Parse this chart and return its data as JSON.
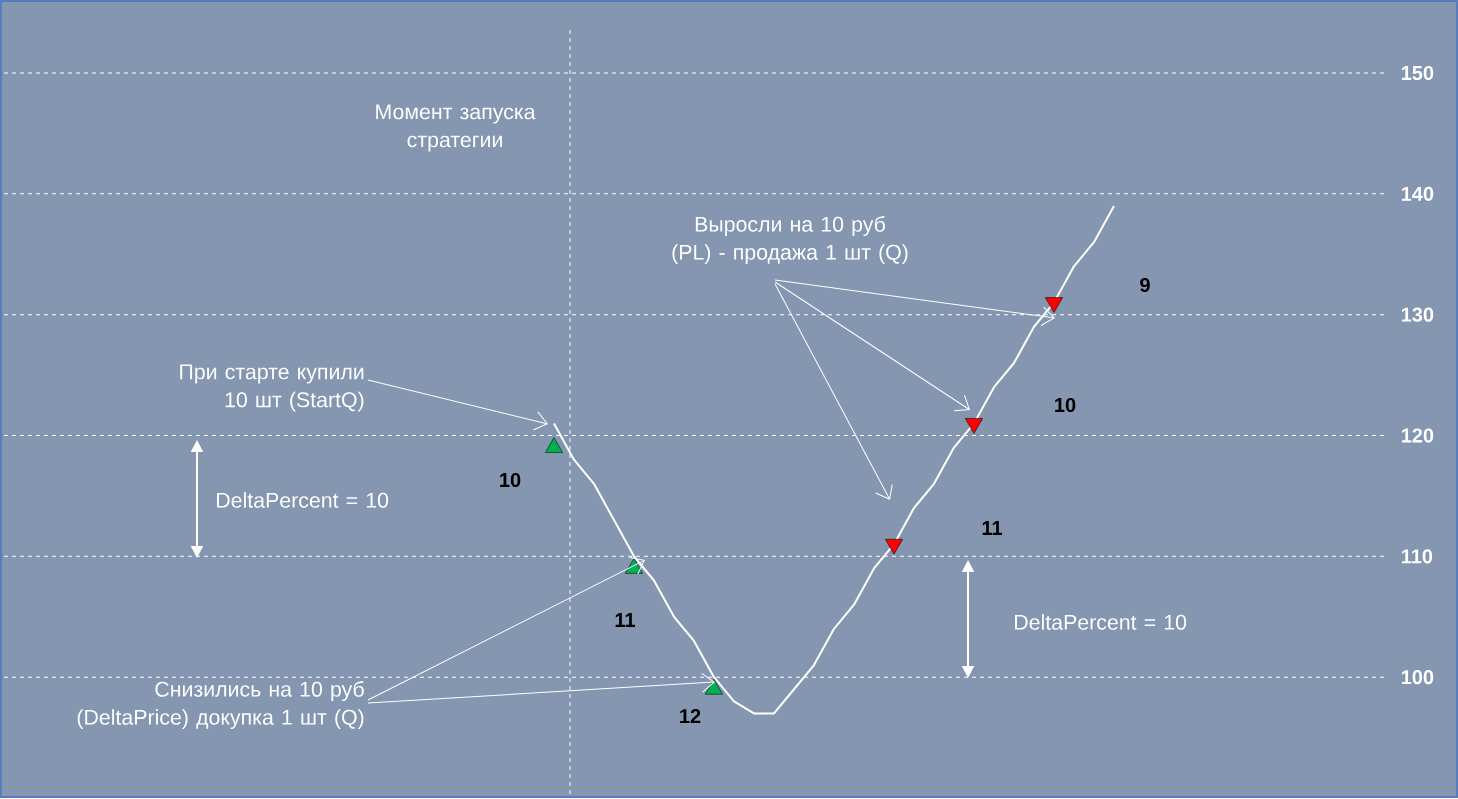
{
  "chart_data": {
    "type": "line",
    "categories": [
      null,
      null,
      null,
      null,
      null,
      null,
      null,
      null,
      null,
      null,
      null,
      null,
      null,
      null,
      null,
      null,
      null,
      null,
      null,
      null,
      null,
      null,
      null,
      null,
      null,
      null,
      null,
      null,
      null,
      null,
      null,
      null,
      null,
      null,
      null,
      null,
      null,
      null,
      null,
      null,
      null,
      null,
      null,
      null,
      null,
      null,
      null,
      null,
      null,
      null,
      null,
      null,
      null,
      null,
      null,
      null,
      null,
      null,
      null,
      null,
      null,
      null,
      null,
      null,
      null,
      null,
      null,
      null,
      null
    ],
    "ylim": [
      90,
      150
    ],
    "yticks": [
      100,
      110,
      120,
      130,
      140,
      150
    ],
    "grid": "y",
    "tick_labels": "y",
    "series": [
      {
        "color": "#ffffff",
        "marker": "none",
        "values": [
          null,
          null,
          null,
          null,
          null,
          null,
          null,
          null,
          null,
          null,
          null,
          null,
          null,
          null,
          null,
          null,
          null,
          null,
          null,
          null,
          null,
          null,
          null,
          null,
          null,
          null,
          null,
          121,
          118,
          116,
          113,
          110,
          108,
          105,
          103,
          100,
          98,
          97,
          97,
          99,
          101,
          104,
          106,
          109,
          111,
          114,
          116,
          119,
          121,
          124,
          126,
          129,
          131,
          134,
          136,
          139,
          null,
          null,
          null,
          null,
          null,
          null,
          null,
          null,
          null,
          null,
          null,
          null,
          null
        ]
      },
      {
        "type": "scatter",
        "color": "#00b050",
        "marker": "triangle",
        "values": [
          null,
          null,
          null,
          null,
          null,
          null,
          null,
          null,
          null,
          null,
          null,
          null,
          null,
          null,
          null,
          null,
          null,
          null,
          null,
          null,
          null,
          null,
          null,
          null,
          null,
          null,
          null,
          119,
          null,
          null,
          null,
          109,
          null,
          null,
          null,
          99,
          null,
          null,
          null,
          null,
          null,
          null,
          null,
          null,
          null,
          null,
          null,
          null,
          null,
          null,
          null,
          null,
          null,
          null,
          null,
          null,
          null,
          null,
          null,
          null,
          null,
          null,
          null,
          null,
          null,
          null,
          null,
          null,
          null
        ]
      },
      {
        "type": "scatter",
        "color": "#ff0000",
        "marker": "triangle",
        "values": [
          null,
          null,
          null,
          null,
          null,
          null,
          null,
          null,
          null,
          null,
          null,
          null,
          null,
          null,
          null,
          null,
          null,
          null,
          null,
          null,
          null,
          null,
          null,
          null,
          null,
          null,
          null,
          null,
          null,
          null,
          null,
          null,
          null,
          null,
          null,
          null,
          null,
          null,
          null,
          null,
          null,
          null,
          null,
          null,
          111,
          null,
          null,
          null,
          121,
          null,
          null,
          null,
          131,
          null,
          null,
          null,
          null,
          null,
          null,
          null,
          null,
          null,
          null,
          null,
          null,
          null,
          null,
          null,
          null
        ]
      }
    ],
    "annotations": [
      "Момент запуска стратегии",
      "Выросли на 10 руб (PL) - продажа 1 шт (Q)",
      "При старте купили 10 шт (StartQ)",
      "DeltaPercent = 10",
      "Снизились на 10 руб (DeltaPrice) докупка 1 шт (Q)",
      "DeltaPercent = 10",
      "10",
      "11",
      "12",
      "11",
      "10",
      "9"
    ]
  }
}
